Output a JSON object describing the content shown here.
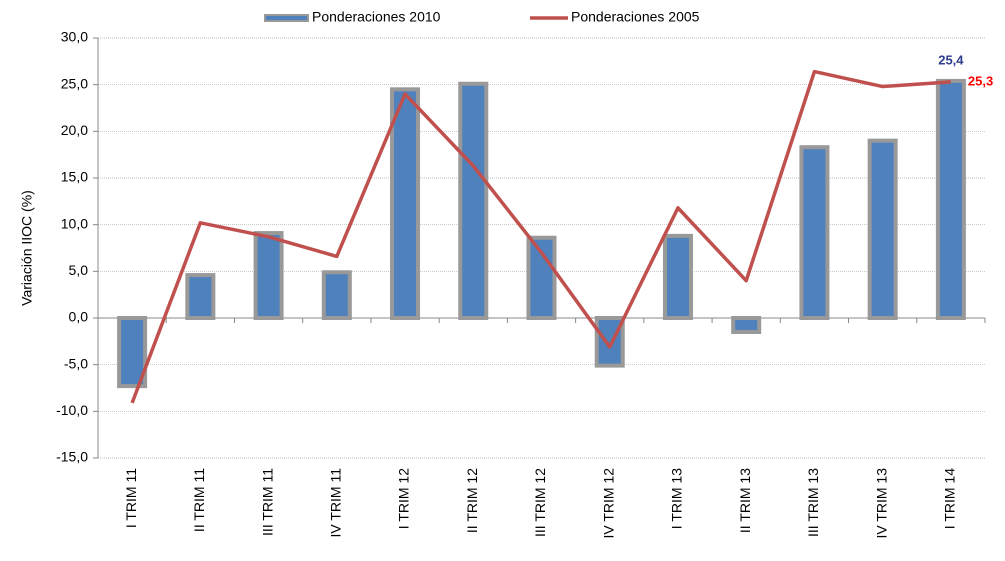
{
  "chart_data": {
    "type": "bar_line",
    "y_label": "Variación IIOC (%)",
    "categories": [
      "I TRIM 11",
      "II TRIM 11",
      "III TRIM 11",
      "IV TRIM 11",
      "I TRIM 12",
      "II TRIM 12",
      "III TRIM 12",
      "IV TRIM 12",
      "I TRIM 13",
      "II TRIM 13",
      "III TRIM 13",
      "IV TRIM 13",
      "I TRIM 14"
    ],
    "series": [
      {
        "name": "Ponderaciones 2010",
        "type": "bar",
        "color": "#4f81bd",
        "label_color": "#2e3d8f",
        "values": [
          -7.3,
          4.6,
          9.1,
          4.9,
          24.5,
          25.1,
          8.6,
          -5.1,
          8.8,
          -1.5,
          18.3,
          19.0,
          25.4
        ],
        "value_labels": [
          null,
          null,
          null,
          null,
          null,
          null,
          null,
          null,
          null,
          null,
          null,
          null,
          "25,4"
        ]
      },
      {
        "name": "Ponderaciones 2005",
        "type": "line",
        "color": "#c0504d",
        "label_color": "#ff0000",
        "values": [
          -9.1,
          10.2,
          8.7,
          6.6,
          24.0,
          16.3,
          7.0,
          -3.1,
          11.8,
          4.0,
          26.4,
          24.8,
          25.3
        ],
        "value_labels": [
          null,
          null,
          null,
          null,
          null,
          null,
          null,
          null,
          null,
          null,
          null,
          null,
          "25,3"
        ]
      }
    ],
    "ylim": [
      -15,
      30
    ],
    "yticks": [
      {
        "value": -15,
        "label": "-15,0"
      },
      {
        "value": -10,
        "label": "-10,0"
      },
      {
        "value": -5,
        "label": "-5,0"
      },
      {
        "value": 0,
        "label": "0,0"
      },
      {
        "value": 5,
        "label": "5,0"
      },
      {
        "value": 10,
        "label": "10,0"
      },
      {
        "value": 15,
        "label": "15,0"
      },
      {
        "value": 20,
        "label": "20,0"
      },
      {
        "value": 25,
        "label": "25,0"
      },
      {
        "value": 30,
        "label": "30,0"
      }
    ],
    "grid": true,
    "legend": "top"
  }
}
